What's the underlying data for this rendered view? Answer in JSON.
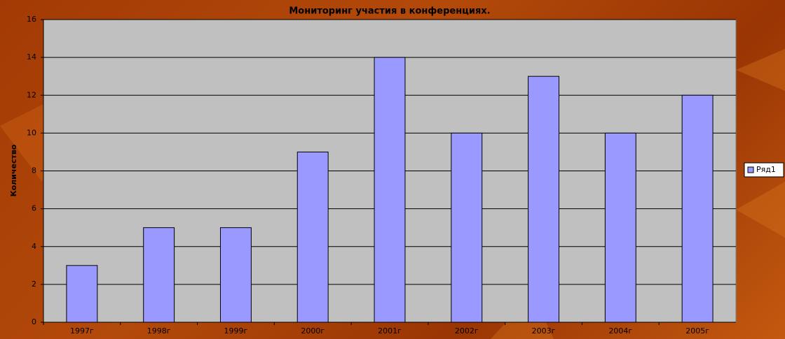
{
  "chart_data": {
    "type": "bar",
    "title": "Мониторинг участия в конференциях.",
    "y_label": "Количество",
    "categories": [
      "1997г",
      "1998г",
      "1999г",
      "2000г",
      "2001г",
      "2002г",
      "2003г",
      "2004г",
      "2005г"
    ],
    "series": [
      {
        "name": "Ряд1",
        "color": "#9999ff",
        "values": [
          3,
          5,
          5,
          9,
          14,
          10,
          13,
          10,
          12
        ]
      }
    ],
    "ylim": [
      0,
      16
    ],
    "yticks": [
      0,
      2,
      4,
      6,
      8,
      10,
      12,
      14,
      16
    ],
    "grid": true,
    "legend": "right"
  }
}
